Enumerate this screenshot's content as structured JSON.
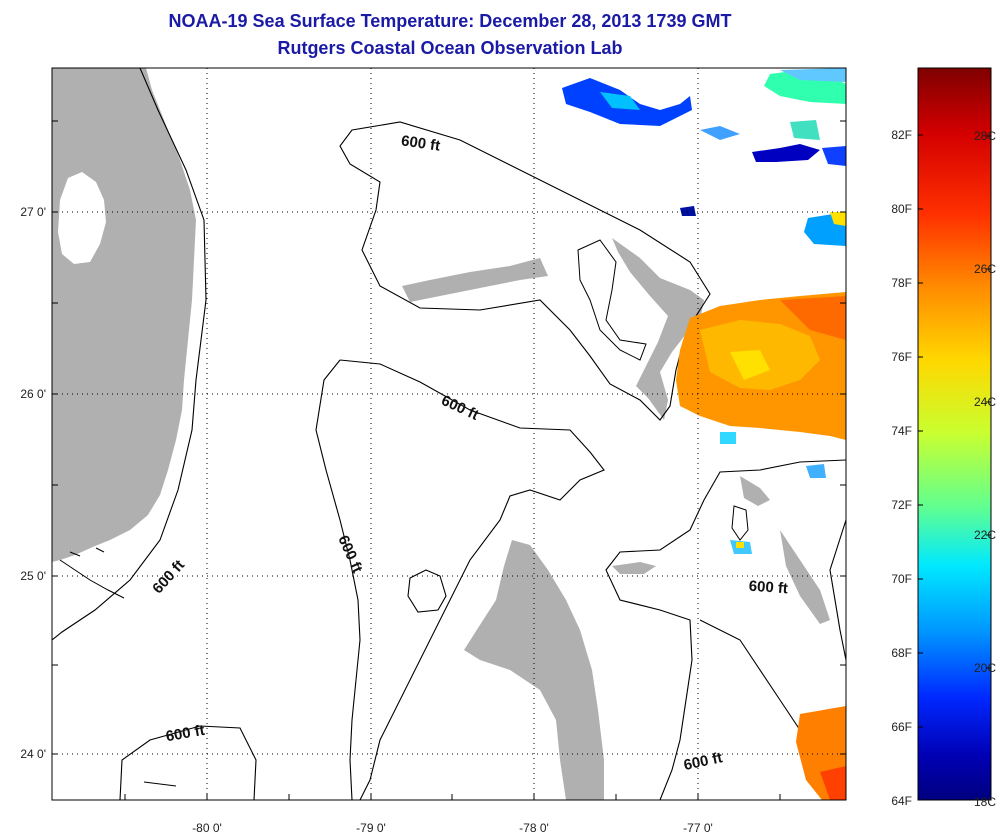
{
  "title": "NOAA-19 Sea Surface Temperature:  December 28, 2013 1739 GMT",
  "subtitle": "Rutgers Coastal Ocean Observation Lab",
  "map": {
    "lon_labels": [
      "-80 0'",
      "-79 0'",
      "-78 0'",
      "-77 0'"
    ],
    "lat_labels": [
      "27 0'",
      "26 0'",
      "25 0'",
      "24 0'"
    ],
    "contour_label": "600 ft",
    "colors": {
      "land": "#b0b0b0",
      "water": "#ffffff",
      "contour": "#000000",
      "grid": "#000000"
    }
  },
  "colorbar": {
    "fahrenheit": [
      "82F",
      "80F",
      "78F",
      "76F",
      "74F",
      "72F",
      "70F",
      "68F",
      "66F",
      "64F"
    ],
    "celsius": [
      "28C",
      "26C",
      "24C",
      "22C",
      "20C",
      "18C"
    ],
    "gradient": [
      "#7f0000",
      "#d40000",
      "#ff3000",
      "#ff8c00",
      "#ffd800",
      "#c8ff30",
      "#60ff90",
      "#00e8ff",
      "#0096ff",
      "#0028ff",
      "#0000b4",
      "#00007f"
    ]
  }
}
